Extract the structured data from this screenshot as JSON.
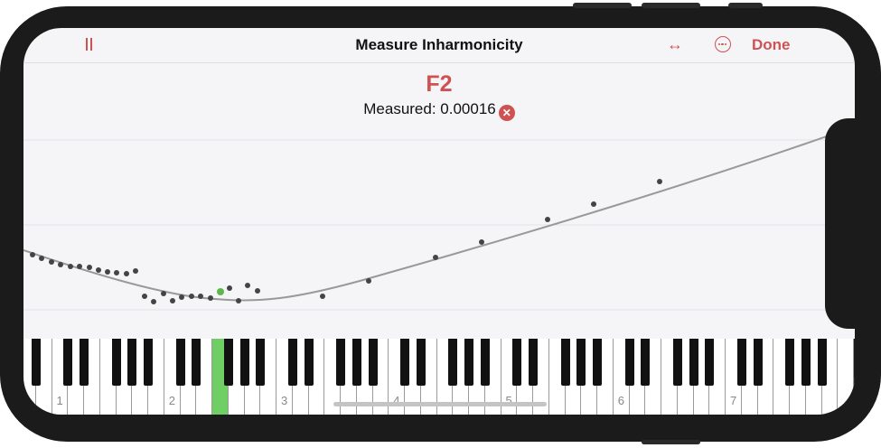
{
  "navbar": {
    "title": "Measure Inharmonicity",
    "done_label": "Done"
  },
  "note": {
    "name": "F2",
    "measured_text": "Measured: 0.00016"
  },
  "icons": {
    "pause": "pause-icon",
    "swap": "arrows-left-right-icon",
    "more": "ellipsis-circle-icon",
    "clear": "clear-circle-icon"
  },
  "colors": {
    "accent": "#cf5252",
    "curve": "#999999",
    "point": "#444444",
    "selected": "#5cb84a",
    "active_key": "#6fcf64"
  },
  "keyboard": {
    "octave_labels": [
      "1",
      "2",
      "3",
      "4",
      "5",
      "6",
      "7"
    ],
    "active_key": "F2"
  }
}
